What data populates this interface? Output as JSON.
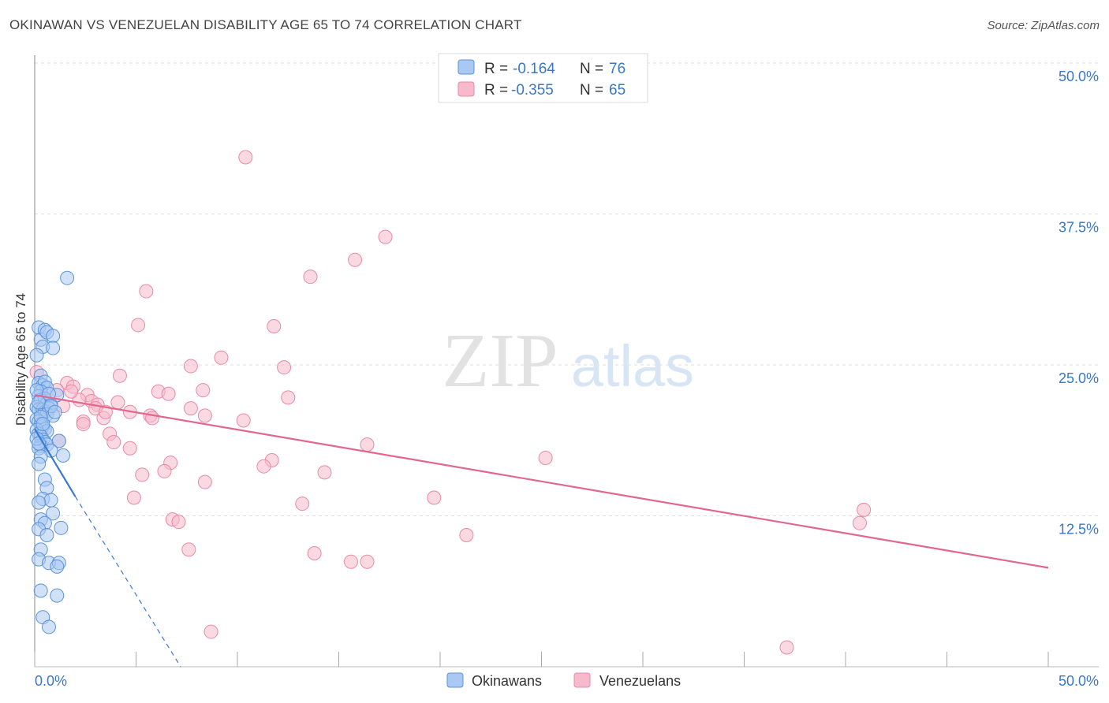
{
  "title": "OKINAWAN VS VENEZUELAN DISABILITY AGE 65 TO 74 CORRELATION CHART",
  "source": "Source: ZipAtlas.com",
  "watermark": {
    "zip": "ZIP",
    "atlas": "atlas"
  },
  "colors": {
    "okinawan_fill": "#a9c9f2",
    "okinawan_stroke": "#5a94dc",
    "okinawan_line": "#3a78d2",
    "venezuelan_fill": "#f7b9cc",
    "venezuelan_stroke": "#e78aa8",
    "venezuelan_line": "#e2678f",
    "tick_label": "#3a78c4",
    "grid": "#dddddd"
  },
  "legend": {
    "r_label": "R =",
    "n_label": "N =",
    "okinawan": {
      "r": "-0.164",
      "n": "76"
    },
    "venezuelan": {
      "r": "-0.355",
      "n": "65"
    }
  },
  "bottom_legend": {
    "okinawans": "Okinawans",
    "venezuelans": "Venezuelans"
  },
  "chart_data": {
    "type": "scatter",
    "title": "OKINAWAN VS VENEZUELAN DISABILITY AGE 65 TO 74 CORRELATION CHART",
    "xlabel": "",
    "ylabel": "Disability Age 65 to 74",
    "xlim": [
      0,
      0.5
    ],
    "ylim": [
      0,
      0.5
    ],
    "x_tick_labels": [
      "0.0%",
      "50.0%"
    ],
    "y_ticks": [
      0.125,
      0.25,
      0.375,
      0.5
    ],
    "y_tick_labels": [
      "12.5%",
      "25.0%",
      "37.5%",
      "50.0%"
    ],
    "series": [
      {
        "name": "Okinawans",
        "r": -0.164,
        "n": 76,
        "trend": {
          "x0": 0.0,
          "y0": 0.197,
          "x_solid_end": 0.02,
          "y_solid_end": 0.141,
          "x_dash_end": 0.072,
          "y_dash_end": 0.0
        },
        "points": [
          [
            0.002,
            0.281
          ],
          [
            0.003,
            0.271
          ],
          [
            0.004,
            0.265
          ],
          [
            0.005,
            0.279
          ],
          [
            0.006,
            0.277
          ],
          [
            0.009,
            0.274
          ],
          [
            0.009,
            0.264
          ],
          [
            0.016,
            0.322
          ],
          [
            0.001,
            0.258
          ],
          [
            0.003,
            0.241
          ],
          [
            0.002,
            0.235
          ],
          [
            0.004,
            0.233
          ],
          [
            0.005,
            0.236
          ],
          [
            0.006,
            0.231
          ],
          [
            0.003,
            0.228
          ],
          [
            0.002,
            0.224
          ],
          [
            0.003,
            0.221
          ],
          [
            0.005,
            0.222
          ],
          [
            0.006,
            0.218
          ],
          [
            0.008,
            0.217
          ],
          [
            0.011,
            0.225
          ],
          [
            0.001,
            0.215
          ],
          [
            0.002,
            0.213
          ],
          [
            0.004,
            0.213
          ],
          [
            0.005,
            0.211
          ],
          [
            0.007,
            0.214
          ],
          [
            0.006,
            0.209
          ],
          [
            0.009,
            0.208
          ],
          [
            0.001,
            0.205
          ],
          [
            0.002,
            0.203
          ],
          [
            0.003,
            0.201
          ],
          [
            0.004,
            0.199
          ],
          [
            0.005,
            0.197
          ],
          [
            0.006,
            0.195
          ],
          [
            0.001,
            0.196
          ],
          [
            0.002,
            0.193
          ],
          [
            0.003,
            0.191
          ],
          [
            0.004,
            0.188
          ],
          [
            0.005,
            0.186
          ],
          [
            0.006,
            0.184
          ],
          [
            0.003,
            0.183
          ],
          [
            0.002,
            0.181
          ],
          [
            0.012,
            0.187
          ],
          [
            0.008,
            0.179
          ],
          [
            0.014,
            0.175
          ],
          [
            0.003,
            0.174
          ],
          [
            0.002,
            0.168
          ],
          [
            0.005,
            0.155
          ],
          [
            0.006,
            0.148
          ],
          [
            0.004,
            0.139
          ],
          [
            0.008,
            0.138
          ],
          [
            0.002,
            0.136
          ],
          [
            0.009,
            0.127
          ],
          [
            0.003,
            0.122
          ],
          [
            0.005,
            0.119
          ],
          [
            0.013,
            0.115
          ],
          [
            0.002,
            0.114
          ],
          [
            0.006,
            0.109
          ],
          [
            0.003,
            0.097
          ],
          [
            0.002,
            0.089
          ],
          [
            0.007,
            0.086
          ],
          [
            0.012,
            0.086
          ],
          [
            0.011,
            0.083
          ],
          [
            0.003,
            0.063
          ],
          [
            0.011,
            0.059
          ],
          [
            0.004,
            0.041
          ],
          [
            0.007,
            0.033
          ],
          [
            0.001,
            0.229
          ],
          [
            0.002,
            0.219
          ],
          [
            0.003,
            0.207
          ],
          [
            0.004,
            0.201
          ],
          [
            0.001,
            0.189
          ],
          [
            0.002,
            0.185
          ],
          [
            0.007,
            0.226
          ],
          [
            0.008,
            0.216
          ],
          [
            0.01,
            0.211
          ]
        ]
      },
      {
        "name": "Venezuelans",
        "r": -0.355,
        "n": 65,
        "trend": {
          "x0": 0.0,
          "y0": 0.225,
          "x1": 0.5,
          "y1": 0.082
        },
        "points": [
          [
            0.104,
            0.422
          ],
          [
            0.173,
            0.356
          ],
          [
            0.158,
            0.337
          ],
          [
            0.136,
            0.323
          ],
          [
            0.055,
            0.311
          ],
          [
            0.051,
            0.283
          ],
          [
            0.118,
            0.282
          ],
          [
            0.001,
            0.244
          ],
          [
            0.092,
            0.256
          ],
          [
            0.077,
            0.249
          ],
          [
            0.123,
            0.248
          ],
          [
            0.042,
            0.241
          ],
          [
            0.016,
            0.235
          ],
          [
            0.019,
            0.232
          ],
          [
            0.011,
            0.229
          ],
          [
            0.026,
            0.225
          ],
          [
            0.061,
            0.228
          ],
          [
            0.066,
            0.226
          ],
          [
            0.083,
            0.229
          ],
          [
            0.125,
            0.223
          ],
          [
            0.028,
            0.22
          ],
          [
            0.041,
            0.219
          ],
          [
            0.031,
            0.217
          ],
          [
            0.03,
            0.214
          ],
          [
            0.047,
            0.211
          ],
          [
            0.057,
            0.208
          ],
          [
            0.058,
            0.206
          ],
          [
            0.077,
            0.214
          ],
          [
            0.084,
            0.208
          ],
          [
            0.103,
            0.204
          ],
          [
            0.034,
            0.206
          ],
          [
            0.024,
            0.203
          ],
          [
            0.037,
            0.193
          ],
          [
            0.039,
            0.186
          ],
          [
            0.047,
            0.181
          ],
          [
            0.164,
            0.184
          ],
          [
            0.012,
            0.187
          ],
          [
            0.252,
            0.173
          ],
          [
            0.117,
            0.171
          ],
          [
            0.067,
            0.169
          ],
          [
            0.113,
            0.166
          ],
          [
            0.064,
            0.162
          ],
          [
            0.143,
            0.161
          ],
          [
            0.053,
            0.159
          ],
          [
            0.084,
            0.153
          ],
          [
            0.197,
            0.14
          ],
          [
            0.049,
            0.14
          ],
          [
            0.132,
            0.135
          ],
          [
            0.409,
            0.13
          ],
          [
            0.068,
            0.122
          ],
          [
            0.071,
            0.12
          ],
          [
            0.407,
            0.119
          ],
          [
            0.213,
            0.109
          ],
          [
            0.076,
            0.097
          ],
          [
            0.138,
            0.094
          ],
          [
            0.156,
            0.087
          ],
          [
            0.164,
            0.087
          ],
          [
            0.087,
            0.029
          ],
          [
            0.371,
            0.016
          ],
          [
            0.005,
            0.221
          ],
          [
            0.014,
            0.216
          ],
          [
            0.022,
            0.221
          ],
          [
            0.018,
            0.228
          ],
          [
            0.024,
            0.201
          ],
          [
            0.035,
            0.211
          ]
        ]
      }
    ]
  }
}
